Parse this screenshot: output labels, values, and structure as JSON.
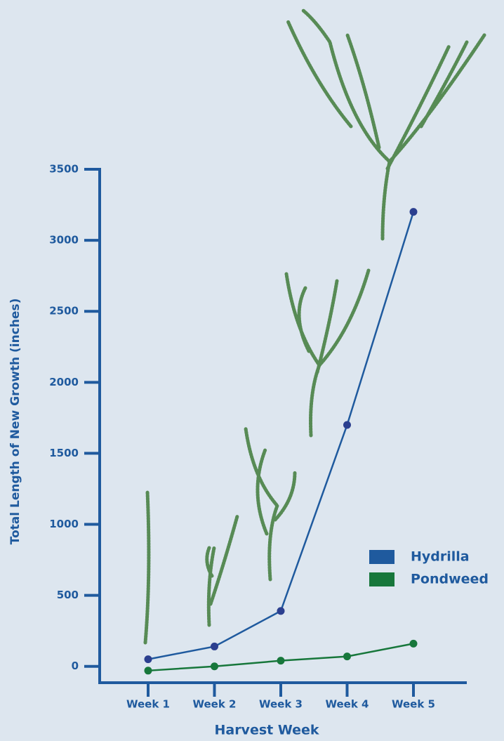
{
  "chart_data": {
    "type": "line",
    "x_label": "Harvest Week",
    "y_label": "Total Length of New Growth (inches)",
    "categories": [
      "Week 1",
      "Week 2",
      "Week 3",
      "Week 4",
      "Week 5"
    ],
    "series": [
      {
        "name": "Hydrilla",
        "color": "#1f5a9e",
        "values": [
          50,
          140,
          390,
          1700,
          3200
        ]
      },
      {
        "name": "Pondweed",
        "color": "#17773b",
        "values": [
          -30,
          0,
          40,
          70,
          160
        ]
      }
    ],
    "ylim": [
      -115,
      3500
    ],
    "yticks": [
      0,
      500,
      1000,
      1500,
      2000,
      2500,
      3000,
      3500
    ],
    "legend": "lower-right"
  }
}
